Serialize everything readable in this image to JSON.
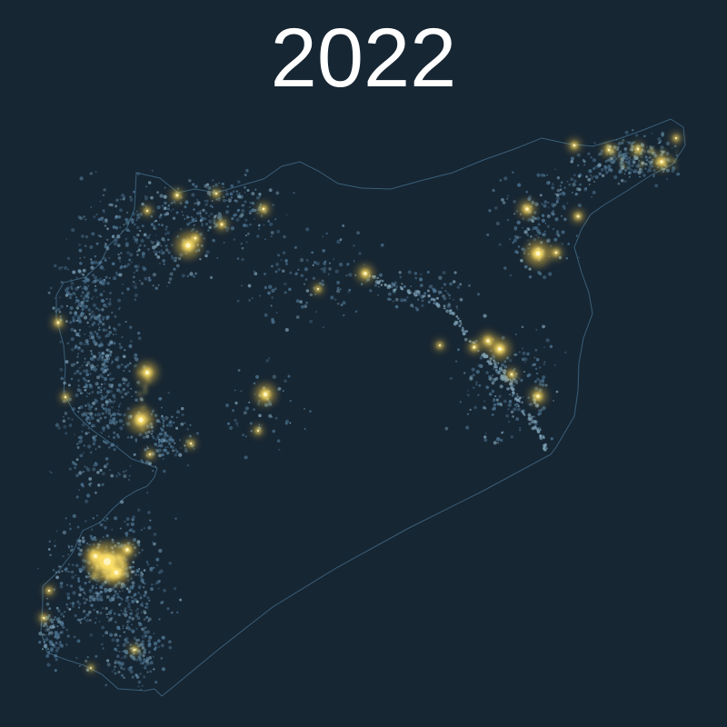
{
  "title": "2022",
  "colors": {
    "background": "#172633",
    "border": "#3a5f78",
    "dim_light": "#4f7896",
    "mid_light": "#7fa3b8",
    "bright_light": "#ffe36a",
    "glow": "#f2c648"
  }
}
